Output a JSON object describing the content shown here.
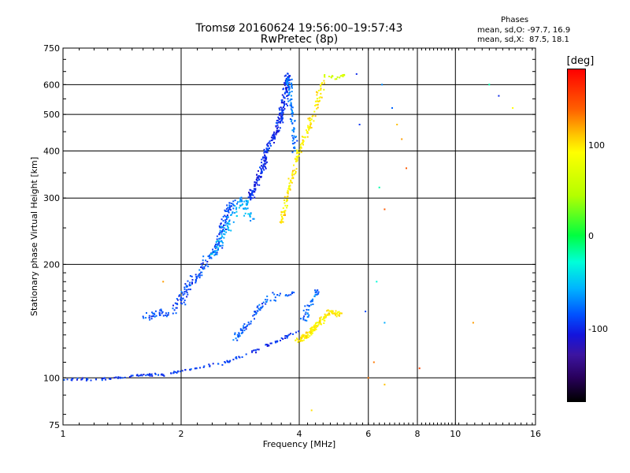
{
  "title_line1": "Tromsø 20160624 19:56:00–19:57:43",
  "title_line2": "RwPretec (8p)",
  "phases": {
    "heading": "Phases",
    "line_o": "mean, sd,O: -97.7, 16.9",
    "line_x": "mean, sd,X:  87.5, 18.1"
  },
  "colorbar": {
    "title": "[deg]",
    "ticks": [
      "100",
      "0",
      "-100"
    ],
    "tick_values": [
      100,
      0,
      -100
    ],
    "range": [
      -180,
      180
    ]
  },
  "chart_data": {
    "type": "scatter",
    "xlabel": "Frequency [MHz]",
    "ylabel": "Stationary phase Virtual Height [km]",
    "xscale": "log",
    "yscale": "log",
    "xlim": [
      1,
      16
    ],
    "ylim": [
      75,
      750
    ],
    "xticks": [
      1,
      2,
      4,
      6,
      8,
      10,
      16
    ],
    "xtick_labels": [
      "1",
      "2",
      "4",
      "6",
      "8",
      "10",
      "16"
    ],
    "yticks": [
      75,
      100,
      200,
      300,
      400,
      500,
      600,
      750
    ],
    "ytick_labels": [
      "75",
      "100",
      "200",
      "300",
      "400",
      "500",
      "600",
      "750"
    ],
    "grid": true,
    "color_by": "phase (deg)",
    "traces": [
      {
        "points": [
          [
            1.0,
            99
          ],
          [
            1.2,
            99
          ],
          [
            1.4,
            100
          ],
          [
            1.6,
            102
          ],
          [
            1.8,
            102
          ],
          [
            2.0,
            104
          ],
          [
            2.3,
            107
          ],
          [
            2.6,
            110
          ],
          [
            2.9,
            115
          ],
          [
            3.2,
            120
          ],
          [
            3.5,
            125
          ],
          [
            3.8,
            130
          ],
          [
            4.0,
            133
          ]
        ],
        "phase": -95,
        "spread": 1.5,
        "n": 150
      },
      {
        "points": [
          [
            1.6,
            145
          ],
          [
            1.9,
            150
          ],
          [
            2.1,
            175
          ],
          [
            2.3,
            200
          ],
          [
            2.5,
            230
          ],
          [
            2.6,
            270
          ],
          [
            2.7,
            295
          ]
        ],
        "phase": -90,
        "spread": 5,
        "n": 220
      },
      {
        "points": [
          [
            2.4,
            210
          ],
          [
            2.6,
            250
          ],
          [
            2.8,
            285
          ],
          [
            2.9,
            300
          ],
          [
            3.0,
            260
          ]
        ],
        "phase": -60,
        "spread": 5,
        "n": 110
      },
      {
        "points": [
          [
            2.7,
            125
          ],
          [
            2.9,
            135
          ],
          [
            3.1,
            150
          ],
          [
            3.3,
            160
          ],
          [
            3.5,
            165
          ],
          [
            3.9,
            168
          ]
        ],
        "phase": -85,
        "spread": 3.5,
        "n": 80
      },
      {
        "points": [
          [
            3.0,
            300
          ],
          [
            3.2,
            350
          ],
          [
            3.3,
            400
          ],
          [
            3.5,
            450
          ],
          [
            3.6,
            500
          ],
          [
            3.7,
            560
          ],
          [
            3.75,
            640
          ]
        ],
        "phase": -100,
        "spread": 3.5,
        "n": 280
      },
      {
        "points": [
          [
            3.9,
            400
          ],
          [
            3.85,
            480
          ],
          [
            3.8,
            560
          ],
          [
            3.75,
            630
          ]
        ],
        "phase": -75,
        "spread": 3,
        "n": 70
      },
      {
        "points": [
          [
            3.6,
            250
          ],
          [
            3.7,
            290
          ],
          [
            3.8,
            330
          ],
          [
            3.9,
            370
          ],
          [
            4.1,
            430
          ],
          [
            4.3,
            480
          ],
          [
            4.45,
            540
          ],
          [
            4.6,
            620
          ]
        ],
        "phase": 95,
        "spread": 3,
        "n": 160
      },
      {
        "points": [
          [
            3.95,
            125
          ],
          [
            4.2,
            130
          ],
          [
            4.5,
            140
          ],
          [
            4.8,
            150
          ],
          [
            5.1,
            148
          ]
        ],
        "phase": 95,
        "spread": 3,
        "n": 160
      },
      {
        "points": [
          [
            4.6,
            630
          ],
          [
            5.0,
            625
          ],
          [
            5.3,
            640
          ]
        ],
        "phase": 60,
        "spread": 2,
        "n": 20
      },
      {
        "points": [
          [
            4.1,
            140
          ],
          [
            4.3,
            160
          ],
          [
            4.5,
            170
          ]
        ],
        "phase": -80,
        "spread": 4,
        "n": 40
      }
    ],
    "scatter_points": [
      {
        "x": 5.6,
        "y": 640,
        "phase": -100
      },
      {
        "x": 5.7,
        "y": 470,
        "phase": -95
      },
      {
        "x": 6.2,
        "y": 110,
        "phase": 130
      },
      {
        "x": 6.6,
        "y": 280,
        "phase": 140
      },
      {
        "x": 6.9,
        "y": 520,
        "phase": -80
      },
      {
        "x": 7.1,
        "y": 470,
        "phase": 110
      },
      {
        "x": 7.3,
        "y": 430,
        "phase": 120
      },
      {
        "x": 7.5,
        "y": 360,
        "phase": 140
      },
      {
        "x": 8.1,
        "y": 106,
        "phase": 150
      },
      {
        "x": 12.2,
        "y": 600,
        "phase": -20
      },
      {
        "x": 12.9,
        "y": 560,
        "phase": -100
      },
      {
        "x": 14.0,
        "y": 520,
        "phase": 90
      },
      {
        "x": 6.6,
        "y": 96,
        "phase": 110
      },
      {
        "x": 6.3,
        "y": 180,
        "phase": -30
      },
      {
        "x": 11.1,
        "y": 140,
        "phase": 120
      },
      {
        "x": 4.3,
        "y": 82,
        "phase": 100
      },
      {
        "x": 6.4,
        "y": 320,
        "phase": -20
      },
      {
        "x": 6.6,
        "y": 140,
        "phase": -60
      },
      {
        "x": 5.9,
        "y": 150,
        "phase": -90
      },
      {
        "x": 6.0,
        "y": 100,
        "phase": 130
      },
      {
        "x": 1.8,
        "y": 180,
        "phase": 120
      },
      {
        "x": 6.5,
        "y": 600,
        "phase": -70
      }
    ]
  }
}
